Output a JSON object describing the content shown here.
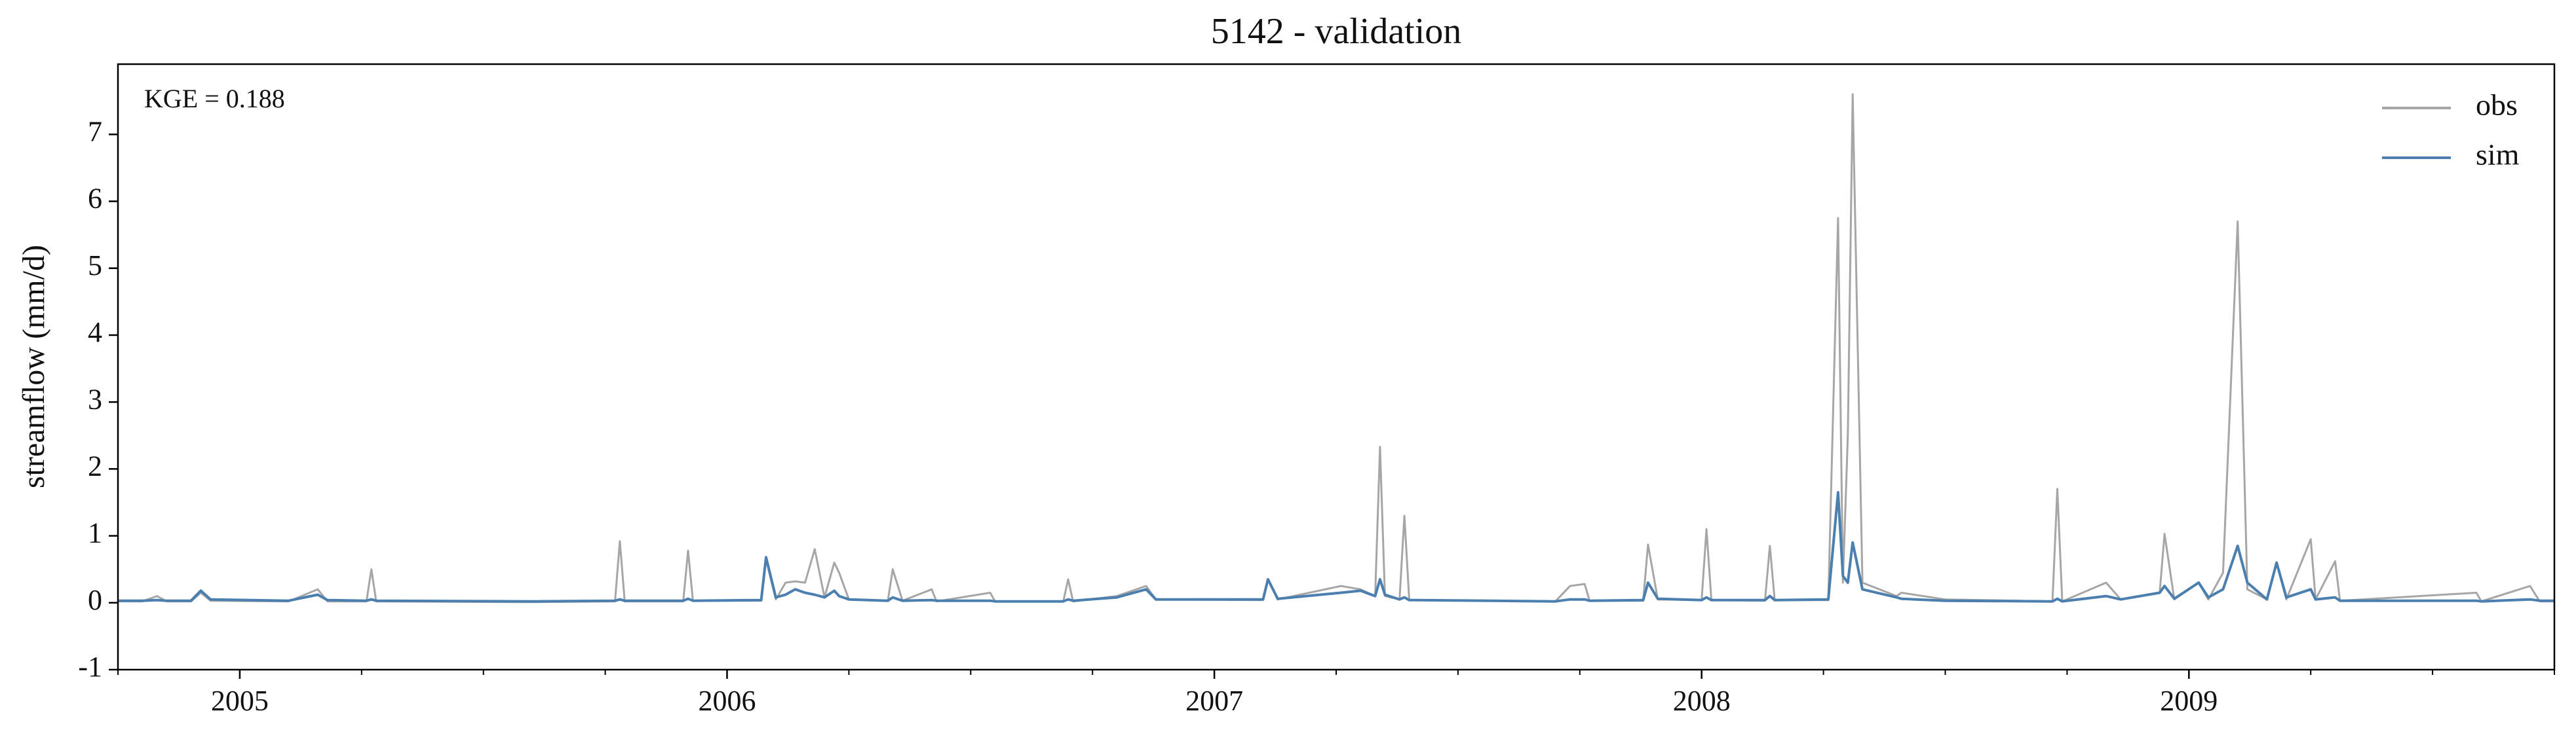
{
  "chart_data": {
    "type": "line",
    "title": "5142 - validation",
    "ylabel": "streamflow (mm/d)",
    "annotation": "KGE = 0.188",
    "legend": "upper right",
    "xlim": [
      2004.75,
      2009.75
    ],
    "xticks": [
      2005,
      2006,
      2007,
      2008,
      2009
    ],
    "xminorticks": [
      2004.75,
      2005.25,
      2005.5,
      2005.75,
      2006.25,
      2006.5,
      2006.75,
      2007.25,
      2007.5,
      2007.75,
      2008.25,
      2008.5,
      2008.75,
      2009.25,
      2009.5,
      2009.75
    ],
    "ylim": [
      -1,
      8.05
    ],
    "yticks": [
      -1,
      0,
      1,
      2,
      3,
      4,
      5,
      6,
      7
    ],
    "x": [
      2004.75,
      2004.8,
      2004.83,
      2004.85,
      2004.9,
      2004.92,
      2004.94,
      2005.1,
      2005.16,
      2005.18,
      2005.26,
      2005.27,
      2005.28,
      2005.6,
      2005.77,
      2005.78,
      2005.79,
      2005.91,
      2005.92,
      2005.93,
      2006.07,
      2006.08,
      2006.1,
      2006.12,
      2006.14,
      2006.16,
      2006.18,
      2006.2,
      2006.22,
      2006.23,
      2006.25,
      2006.33,
      2006.34,
      2006.36,
      2006.42,
      2006.43,
      2006.54,
      2006.55,
      2006.69,
      2006.7,
      2006.71,
      2006.8,
      2006.86,
      2006.88,
      2007.1,
      2007.11,
      2007.13,
      2007.26,
      2007.3,
      2007.33,
      2007.34,
      2007.35,
      2007.38,
      2007.39,
      2007.4,
      2007.7,
      2007.73,
      2007.76,
      2007.77,
      2007.88,
      2007.89,
      2007.91,
      2008.0,
      2008.01,
      2008.02,
      2008.13,
      2008.14,
      2008.15,
      2008.26,
      2008.28,
      2008.29,
      2008.3,
      2008.31,
      2008.33,
      2008.4,
      2008.41,
      2008.5,
      2008.72,
      2008.73,
      2008.74,
      2008.83,
      2008.86,
      2008.94,
      2008.95,
      2008.97,
      2009.02,
      2009.04,
      2009.07,
      2009.1,
      2009.12,
      2009.16,
      2009.18,
      2009.2,
      2009.25,
      2009.26,
      2009.3,
      2009.31,
      2009.59,
      2009.6,
      2009.7,
      2009.72,
      2009.75
    ],
    "series": [
      {
        "name": "obs",
        "color": "#a6a6a6",
        "values": [
          0.02,
          0.02,
          0.1,
          0.02,
          0.02,
          0.15,
          0.03,
          0.02,
          0.2,
          0.02,
          0.02,
          0.5,
          0.02,
          0.01,
          0.02,
          0.92,
          0.02,
          0.02,
          0.78,
          0.03,
          0.03,
          0.65,
          0.05,
          0.3,
          0.32,
          0.3,
          0.8,
          0.08,
          0.6,
          0.45,
          0.05,
          0.03,
          0.5,
          0.03,
          0.2,
          0.02,
          0.15,
          0.02,
          0.02,
          0.35,
          0.02,
          0.1,
          0.25,
          0.05,
          0.04,
          0.35,
          0.05,
          0.25,
          0.2,
          0.1,
          2.33,
          0.1,
          0.05,
          1.3,
          0.04,
          0.02,
          0.25,
          0.28,
          0.03,
          0.03,
          0.87,
          0.05,
          0.04,
          1.1,
          0.04,
          0.03,
          0.85,
          0.04,
          0.04,
          5.75,
          0.3,
          2.5,
          7.6,
          0.3,
          0.1,
          0.15,
          0.05,
          0.02,
          1.7,
          0.02,
          0.3,
          0.05,
          0.15,
          1.03,
          0.05,
          0.3,
          0.05,
          0.45,
          5.7,
          0.2,
          0.05,
          0.6,
          0.05,
          0.95,
          0.05,
          0.62,
          0.03,
          0.15,
          0.02,
          0.25,
          0.02,
          0.02
        ]
      },
      {
        "name": "sim",
        "color": "#4a7fb0",
        "values": [
          0.03,
          0.03,
          0.04,
          0.03,
          0.03,
          0.18,
          0.05,
          0.03,
          0.12,
          0.04,
          0.03,
          0.05,
          0.03,
          0.02,
          0.03,
          0.05,
          0.03,
          0.03,
          0.06,
          0.03,
          0.04,
          0.68,
          0.08,
          0.12,
          0.2,
          0.15,
          0.12,
          0.08,
          0.18,
          0.1,
          0.05,
          0.03,
          0.08,
          0.03,
          0.04,
          0.03,
          0.03,
          0.02,
          0.02,
          0.05,
          0.03,
          0.08,
          0.2,
          0.05,
          0.05,
          0.35,
          0.06,
          0.15,
          0.18,
          0.1,
          0.35,
          0.12,
          0.05,
          0.08,
          0.04,
          0.02,
          0.05,
          0.05,
          0.03,
          0.04,
          0.3,
          0.06,
          0.04,
          0.08,
          0.04,
          0.04,
          0.1,
          0.04,
          0.05,
          1.65,
          0.4,
          0.3,
          0.9,
          0.2,
          0.08,
          0.06,
          0.03,
          0.02,
          0.06,
          0.02,
          0.1,
          0.05,
          0.15,
          0.25,
          0.06,
          0.3,
          0.08,
          0.2,
          0.85,
          0.3,
          0.05,
          0.6,
          0.08,
          0.2,
          0.05,
          0.08,
          0.03,
          0.03,
          0.02,
          0.05,
          0.03,
          0.03
        ]
      }
    ]
  }
}
